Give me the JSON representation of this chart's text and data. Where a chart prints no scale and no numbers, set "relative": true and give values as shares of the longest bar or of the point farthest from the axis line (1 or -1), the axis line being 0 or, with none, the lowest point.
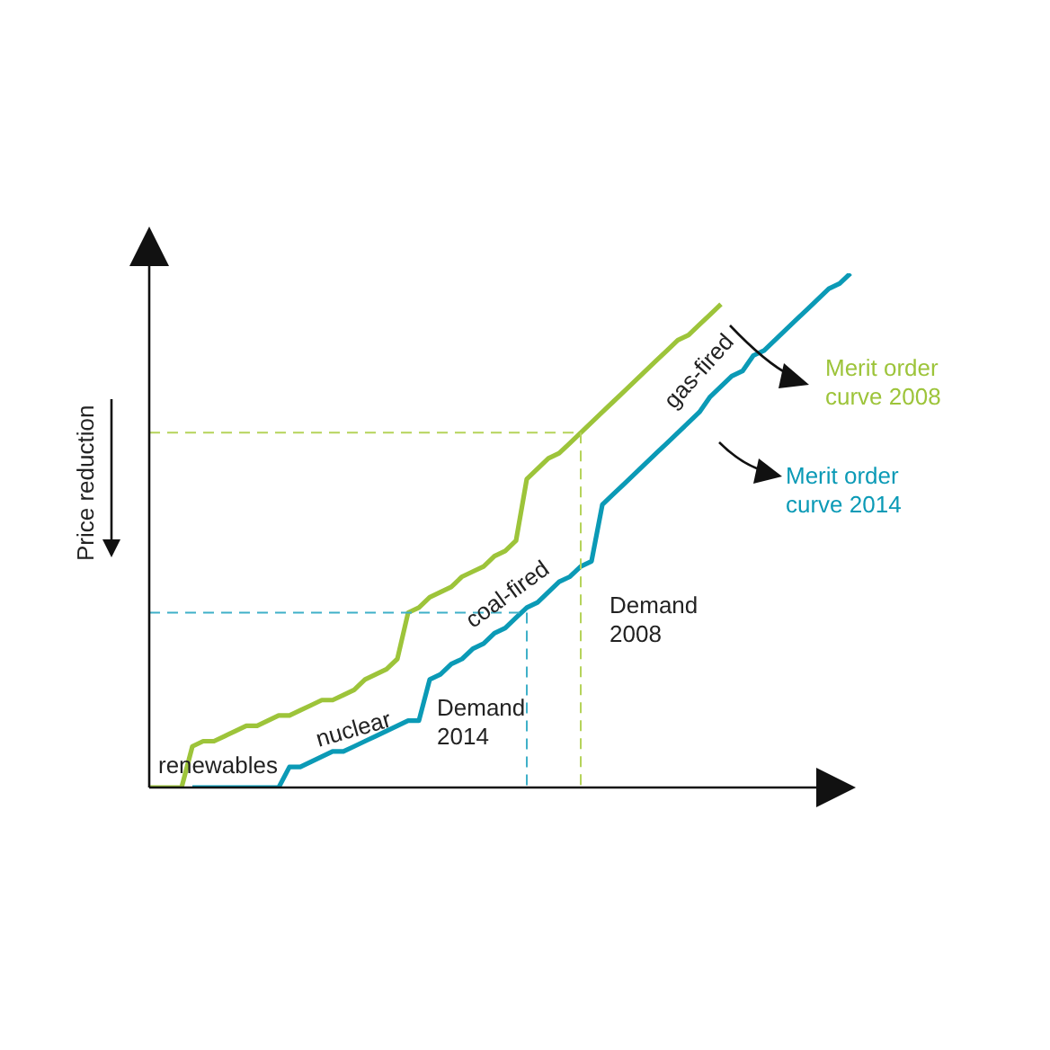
{
  "chart_data": {
    "type": "line",
    "relative": true,
    "tick_labels": false,
    "marker": "none",
    "ylabel": "Price reduction",
    "categories": [
      null,
      null,
      null,
      null,
      null,
      null,
      null,
      null,
      null,
      null,
      null,
      null,
      null,
      null,
      null,
      null,
      null,
      null,
      null,
      null,
      null,
      null,
      null,
      null,
      null,
      null,
      null,
      null,
      null,
      null,
      null,
      null,
      null,
      null,
      null,
      null,
      null,
      null,
      null,
      null,
      null,
      null,
      null,
      null,
      null,
      null,
      null,
      null,
      null,
      null,
      null,
      null,
      null,
      null,
      null,
      null,
      null,
      null,
      null,
      null,
      null,
      null,
      null,
      null,
      null,
      null
    ],
    "series": [
      {
        "name": "Merit order curve 2008",
        "color": "#9dc43a",
        "values": [
          0,
          0,
          0,
          0,
          0.08,
          0.09,
          0.09,
          0.1,
          0.11,
          0.12,
          0.12,
          0.13,
          0.14,
          0.14,
          0.15,
          0.16,
          0.17,
          0.17,
          0.18,
          0.19,
          0.21,
          0.22,
          0.23,
          0.25,
          0.34,
          0.35,
          0.37,
          0.38,
          0.39,
          0.41,
          0.42,
          0.43,
          0.45,
          0.46,
          0.48,
          0.6,
          0.62,
          0.64,
          0.65,
          0.67,
          0.69,
          0.71,
          0.73,
          0.75,
          0.77,
          0.79,
          0.81,
          0.83,
          0.85,
          0.87,
          0.88,
          0.9,
          0.92,
          0.94,
          null,
          null,
          null,
          null,
          null,
          null,
          null,
          null,
          null,
          null,
          null,
          null
        ]
      },
      {
        "name": "Merit order curve 2014",
        "color": "#0b9ab6",
        "values": [
          null,
          null,
          null,
          null,
          0,
          0,
          0,
          0,
          0,
          0,
          0,
          0,
          0,
          0.04,
          0.04,
          0.05,
          0.06,
          0.07,
          0.07,
          0.08,
          0.09,
          0.1,
          0.11,
          0.12,
          0.13,
          0.13,
          0.21,
          0.22,
          0.24,
          0.25,
          0.27,
          0.28,
          0.3,
          0.31,
          0.33,
          0.35,
          0.36,
          0.38,
          0.4,
          0.41,
          0.43,
          0.44,
          0.55,
          0.57,
          0.59,
          0.61,
          0.63,
          0.65,
          0.67,
          0.69,
          0.71,
          0.73,
          0.76,
          0.78,
          0.8,
          0.81,
          0.84,
          0.85,
          0.87,
          0.89,
          0.91,
          0.93,
          0.95,
          0.97,
          0.98,
          1
        ]
      }
    ],
    "ref_lines": [
      {
        "axis": "y",
        "value": 0.69,
        "color": "#b5d35a",
        "line_style": "dashed"
      },
      {
        "axis": "y",
        "value": 0.34,
        "color": "#3fb0c8",
        "line_style": "dashed"
      }
    ],
    "annotations": [
      "renewables",
      "nuclear",
      "coal-fired",
      "gas-fired",
      "Demand 2014",
      "Demand 2008"
    ]
  }
}
